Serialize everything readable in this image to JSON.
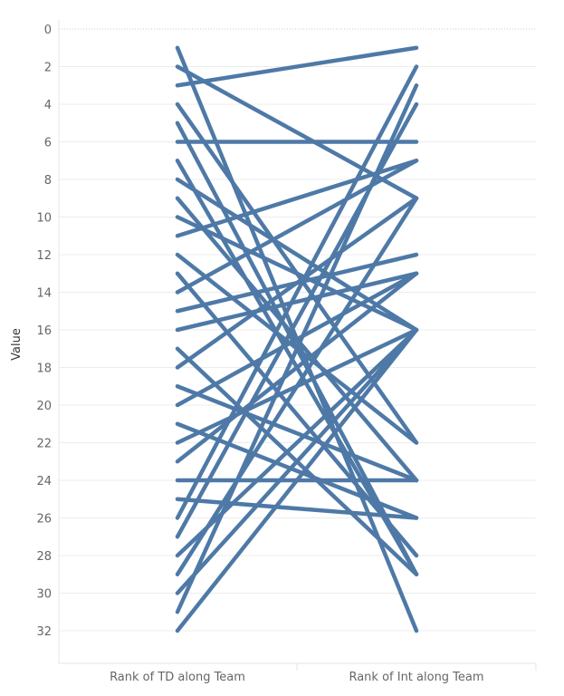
{
  "chart_data": {
    "type": "line",
    "chart_style": "slope",
    "categories": [
      "Rank of TD along Team",
      "Rank of Int along Team"
    ],
    "ylabel": "Value",
    "ylim": [
      0,
      33
    ],
    "y_axis_reversed": true,
    "yticks": [
      0,
      2,
      4,
      6,
      8,
      10,
      12,
      14,
      16,
      18,
      20,
      22,
      24,
      26,
      28,
      30,
      32
    ],
    "grid": true,
    "line_color": "#4e79a7",
    "series": [
      {
        "values": [
          1,
          32
        ]
      },
      {
        "values": [
          2,
          9
        ]
      },
      {
        "values": [
          3,
          1
        ]
      },
      {
        "values": [
          4,
          22
        ]
      },
      {
        "values": [
          5,
          29
        ]
      },
      {
        "values": [
          6,
          6
        ]
      },
      {
        "values": [
          7,
          29
        ]
      },
      {
        "values": [
          8,
          16
        ]
      },
      {
        "values": [
          9,
          24
        ]
      },
      {
        "values": [
          10,
          16
        ]
      },
      {
        "values": [
          11,
          7
        ]
      },
      {
        "values": [
          12,
          22
        ]
      },
      {
        "values": [
          13,
          28
        ]
      },
      {
        "values": [
          14,
          7
        ]
      },
      {
        "values": [
          15,
          12
        ]
      },
      {
        "values": [
          16,
          13
        ]
      },
      {
        "values": [
          17,
          29
        ]
      },
      {
        "values": [
          18,
          9
        ]
      },
      {
        "values": [
          19,
          24
        ]
      },
      {
        "values": [
          20,
          13
        ]
      },
      {
        "values": [
          21,
          26
        ]
      },
      {
        "values": [
          22,
          16
        ]
      },
      {
        "values": [
          23,
          13
        ]
      },
      {
        "values": [
          24,
          24
        ]
      },
      {
        "values": [
          25,
          26
        ]
      },
      {
        "values": [
          26,
          2
        ]
      },
      {
        "values": [
          27,
          4
        ]
      },
      {
        "values": [
          28,
          16
        ]
      },
      {
        "values": [
          29,
          9
        ]
      },
      {
        "values": [
          30,
          16
        ]
      },
      {
        "values": [
          31,
          3
        ]
      },
      {
        "values": [
          32,
          16
        ]
      }
    ]
  }
}
